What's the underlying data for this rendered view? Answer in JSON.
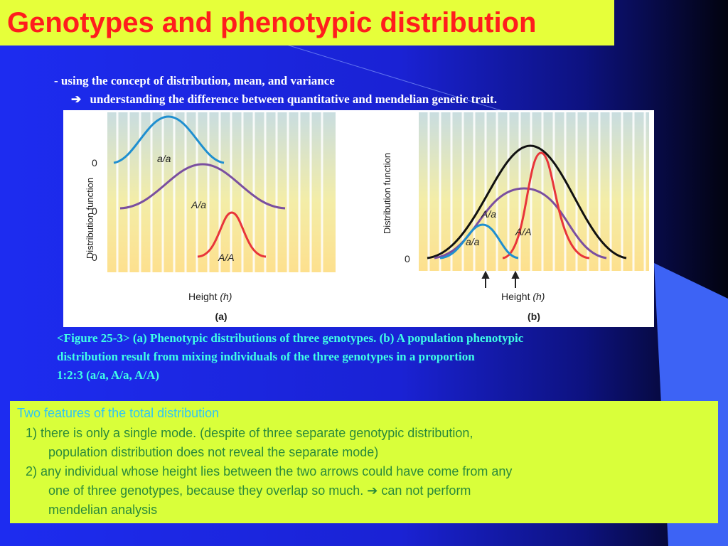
{
  "title": "Genotypes and phenotypic distribution",
  "intro": {
    "line1": "- using the concept of distribution, mean, and variance",
    "arrow": "➔",
    "line2": "understanding the difference between quantitative and mendelian genetic trait."
  },
  "figure": {
    "panel_a": {
      "ylabel": "Distribution function",
      "xlabel_main": "Height",
      "xlabel_var": "(h)",
      "panel_label": "(a)",
      "zero_ticks": [
        "0",
        "0",
        "0"
      ],
      "curve_labels": [
        "a/a",
        "A/a",
        "A/A"
      ]
    },
    "panel_b": {
      "ylabel": "Distribution function",
      "xlabel_main": "Height",
      "xlabel_var": "(h)",
      "panel_label": "(b)",
      "zero_tick": "0",
      "curve_labels": [
        "A/a",
        "a/a",
        "A/A"
      ]
    },
    "colors": {
      "aa": "#1f8fd0",
      "Aa": "#7a4fa0",
      "AA": "#e8353a",
      "total": "#111111"
    }
  },
  "caption": {
    "line1": "<Figure 25-3> (a) Phenotypic distributions of three genotypes. (b) A population phenotypic",
    "line2": "distribution result from mixing individuals of the three genotypes in a proportion",
    "line3": "1:2:3 (a/a, A/a, A/A)"
  },
  "features": {
    "heading": "Two features of the total distribution",
    "lines": [
      "1)  there is only a single mode. (despite of three separate genotypic distribution,",
      "population distribution does not reveal the separate mode)",
      "2)  any individual whose height lies between the two arrows could have come from any",
      "one of three genotypes, because they overlap so much.  ➔ can not perform",
      "mendelian analysis"
    ]
  }
}
